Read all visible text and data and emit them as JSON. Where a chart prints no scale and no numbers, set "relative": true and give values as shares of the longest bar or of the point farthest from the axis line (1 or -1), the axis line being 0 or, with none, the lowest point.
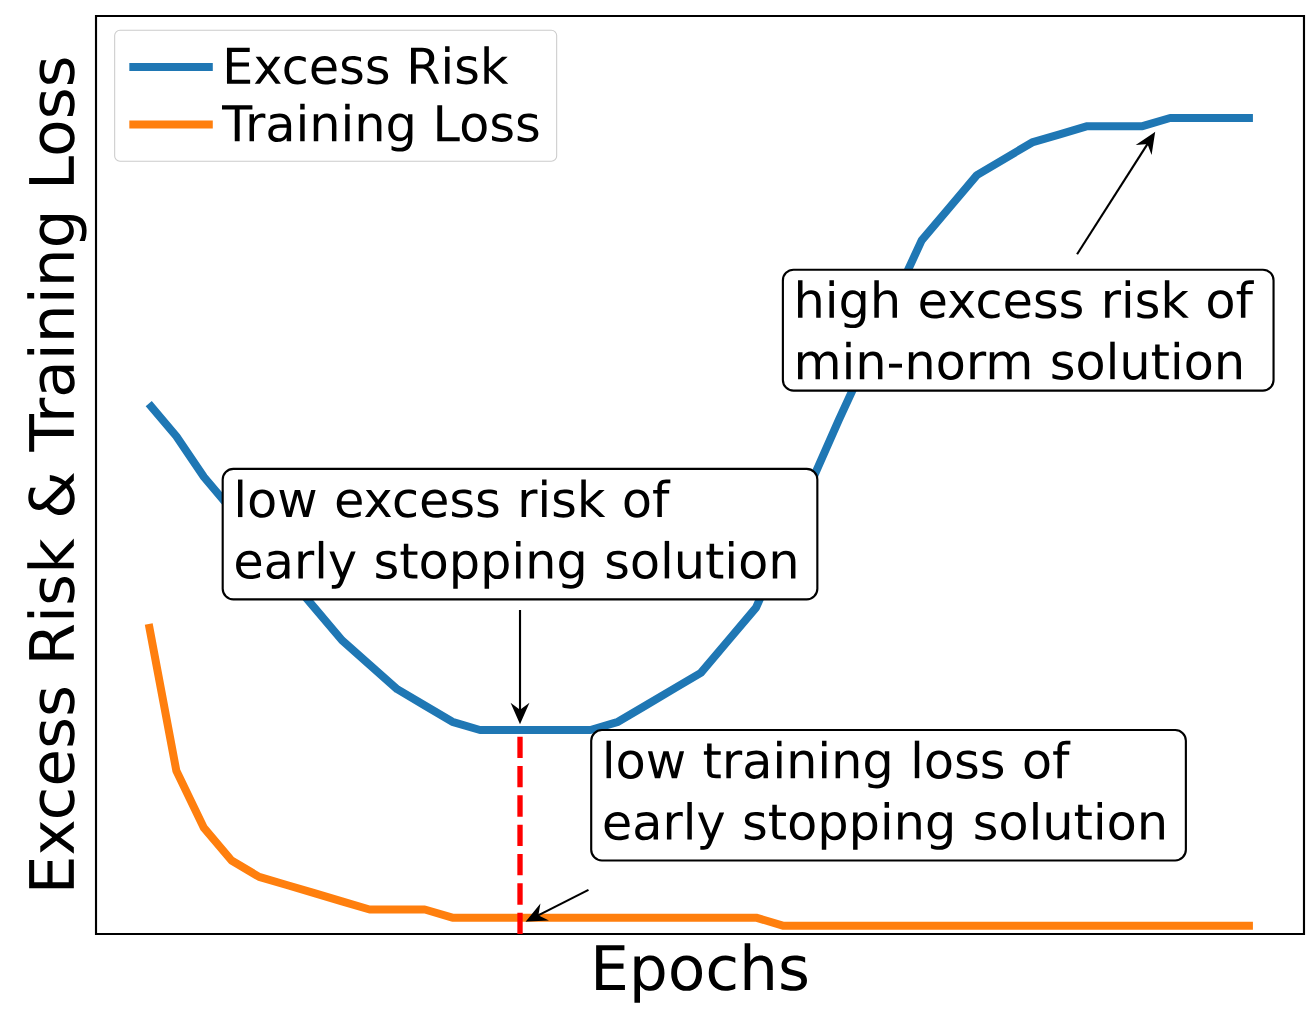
{
  "chart_data": {
    "type": "line",
    "relative": true,
    "xlabel": "Epochs",
    "ylabel": "Excess Risk & Training Loss",
    "legend": "top left",
    "categories": [
      null,
      null,
      null,
      null,
      null,
      null,
      null,
      null,
      null,
      null,
      null,
      null,
      null,
      null,
      null,
      null,
      null,
      null,
      null,
      null,
      null,
      null,
      null,
      null,
      null,
      null,
      null,
      null,
      null,
      null,
      null,
      null,
      null,
      null,
      null,
      null,
      null,
      null,
      null,
      null,
      null
    ],
    "series": [
      {
        "name": "Excess Risk",
        "color": "#1f77b4",
        "values": [
          0.65,
          0.61,
          0.56,
          null,
          null,
          null,
          0.4,
          0.36,
          0.33,
          0.3,
          0.28,
          0.26,
          0.25,
          0.25,
          0.25,
          0.25,
          0.25,
          0.26,
          0.28,
          0.3,
          0.32,
          0.36,
          0.4,
          null,
          null,
          0.63,
          null,
          null,
          0.85,
          0.89,
          0.93,
          0.95,
          0.97,
          0.98,
          0.99,
          0.99,
          0.99,
          1,
          1,
          1,
          1
        ]
      },
      {
        "name": "Training Loss",
        "color": "#ff7f0e",
        "values": [
          0.38,
          0.2,
          0.13,
          0.09,
          0.07,
          0.06,
          0.05,
          0.04,
          0.03,
          0.03,
          0.03,
          0.02,
          0.02,
          0.02,
          0.02,
          0.02,
          0.02,
          0.02,
          0.02,
          0.02,
          0.02,
          0.02,
          0.02,
          0.01,
          0.01,
          0.01,
          0.01,
          0.01,
          0.01,
          0.01,
          0.01,
          0.01,
          0.01,
          0.01,
          0.01,
          0.01,
          0.01,
          0.01,
          0.01,
          0.01,
          0.01
        ]
      }
    ],
    "annotations": [
      "low excess risk of early stopping solution",
      "low training loss of early stopping solution",
      "high excess risk of min-norm solution"
    ]
  }
}
